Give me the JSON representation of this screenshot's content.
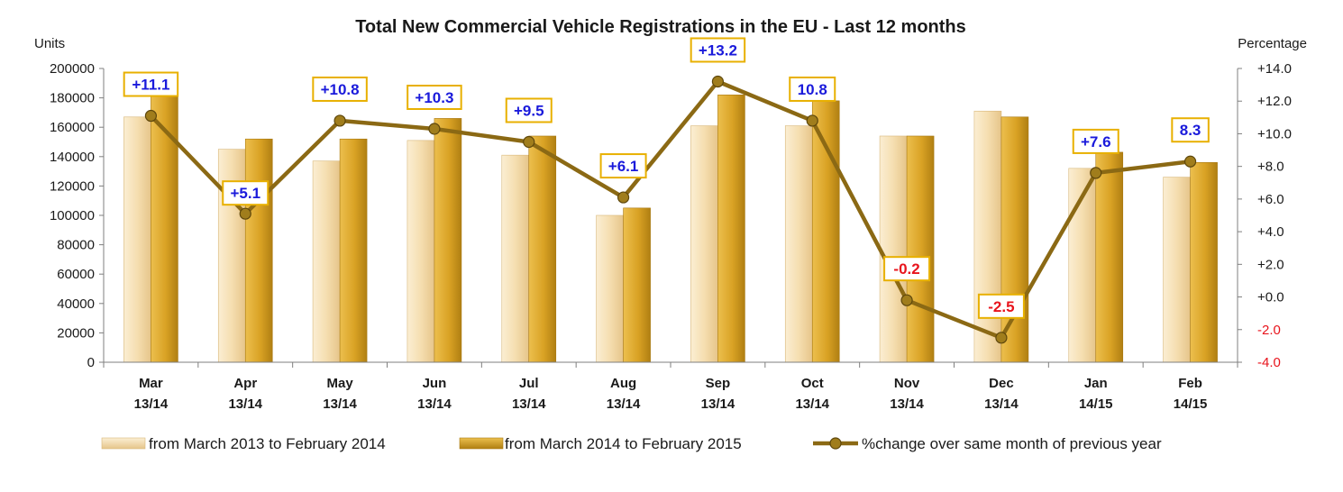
{
  "chart_data": {
    "type": "bar",
    "title": "Total New Commercial Vehicle Registrations in the EU - Last 12 months",
    "ylabel": "Units",
    "y2label": "Percentage",
    "ylim": [
      0,
      200000
    ],
    "yticks": [
      "0",
      "20000",
      "40000",
      "60000",
      "80000",
      "100000",
      "120000",
      "140000",
      "160000",
      "180000",
      "200000"
    ],
    "y2lim": [
      -4,
      14
    ],
    "y2ticks": [
      "-4.0",
      "-2.0",
      "+0.0",
      "+2.0",
      "+4.0",
      "+6.0",
      "+8.0",
      "+10.0",
      "+12.0",
      "+14.0"
    ],
    "categories": [
      [
        "Mar",
        "13/14"
      ],
      [
        "Apr",
        "13/14"
      ],
      [
        "May",
        "13/14"
      ],
      [
        "Jun",
        "13/14"
      ],
      [
        "Jul",
        "13/14"
      ],
      [
        "Aug",
        "13/14"
      ],
      [
        "Sep",
        "13/14"
      ],
      [
        "Oct",
        "13/14"
      ],
      [
        "Nov",
        "13/14"
      ],
      [
        "Dec",
        "13/14"
      ],
      [
        "Jan",
        "14/15"
      ],
      [
        "Feb",
        "14/15"
      ]
    ],
    "series": [
      {
        "name": "from March 2013 to February 2014",
        "kind": "bar",
        "color": "#f5deb0",
        "values": [
          167000,
          145000,
          137000,
          151000,
          141000,
          100000,
          161000,
          161000,
          154000,
          171000,
          132000,
          126000
        ]
      },
      {
        "name": "from March 2014 to February 2015",
        "kind": "bar",
        "color": "#d9a224",
        "values": [
          185000,
          152000,
          152000,
          166000,
          154000,
          105000,
          182000,
          178000,
          154000,
          167000,
          143000,
          136000
        ]
      },
      {
        "name": "%change over same month of previous year",
        "kind": "line",
        "axis": "right",
        "color": "#8b6914",
        "values": [
          11.1,
          5.1,
          10.8,
          10.3,
          9.5,
          6.1,
          13.2,
          10.8,
          -0.2,
          -2.5,
          7.6,
          8.3
        ],
        "labels": [
          "+11.1",
          "+5.1",
          "+10.8",
          "+10.3",
          "+9.5",
          "+6.1",
          "+13.2",
          "10.8",
          "-0.2",
          "-2.5",
          "+7.6",
          "8.3"
        ],
        "label_colors": [
          "#1a1adb",
          "#1a1adb",
          "#1a1adb",
          "#1a1adb",
          "#1a1adb",
          "#1a1adb",
          "#1a1adb",
          "#1a1adb",
          "#e8141c",
          "#e8141c",
          "#1a1adb",
          "#1a1adb"
        ]
      }
    ],
    "legend_position": "bottom",
    "grid": false
  }
}
